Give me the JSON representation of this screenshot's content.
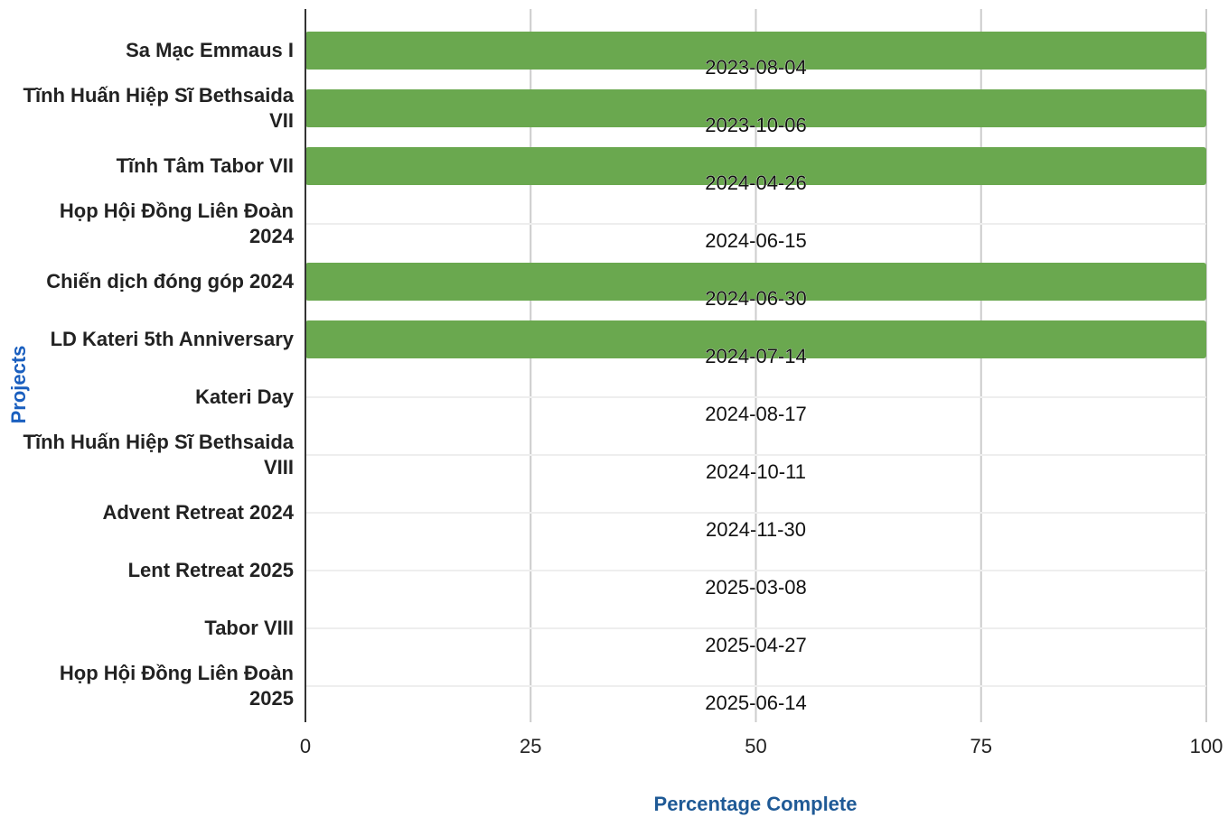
{
  "chart_data": {
    "type": "bar",
    "orientation": "horizontal",
    "xlabel": "Percentage Complete",
    "ylabel": "Projects",
    "categories": [
      "Sa Mạc Emmaus I",
      "Tĩnh Huấn Hiệp Sĩ Bethsaida VII",
      "Tĩnh Tâm Tabor VII",
      "Họp Hội Đồng Liên Đoàn 2024",
      "Chiến dịch đóng góp 2024",
      "LD Kateri 5th Anniversary",
      "Kateri Day",
      "Tĩnh Huấn Hiệp Sĩ Bethsaida VIII",
      "Advent Retreat 2024",
      "Lent Retreat 2025",
      "Tabor VIII",
      "Họp Hội Đồng Liên Đoàn 2025"
    ],
    "values": [
      100,
      100,
      100,
      0,
      100,
      100,
      0,
      0,
      0,
      0,
      0,
      0
    ],
    "annotations": [
      "2023-08-04",
      "2023-10-06",
      "2024-04-26",
      "2024-06-15",
      "2024-06-30",
      "2024-07-14",
      "2024-08-17",
      "2024-10-11",
      "2024-11-30",
      "2025-03-08",
      "2025-04-27",
      "2025-06-14"
    ],
    "color": "#6aa84f",
    "xlim": [
      0,
      100
    ],
    "xticks": [
      0,
      25,
      50,
      75,
      100
    ],
    "grid": true
  }
}
